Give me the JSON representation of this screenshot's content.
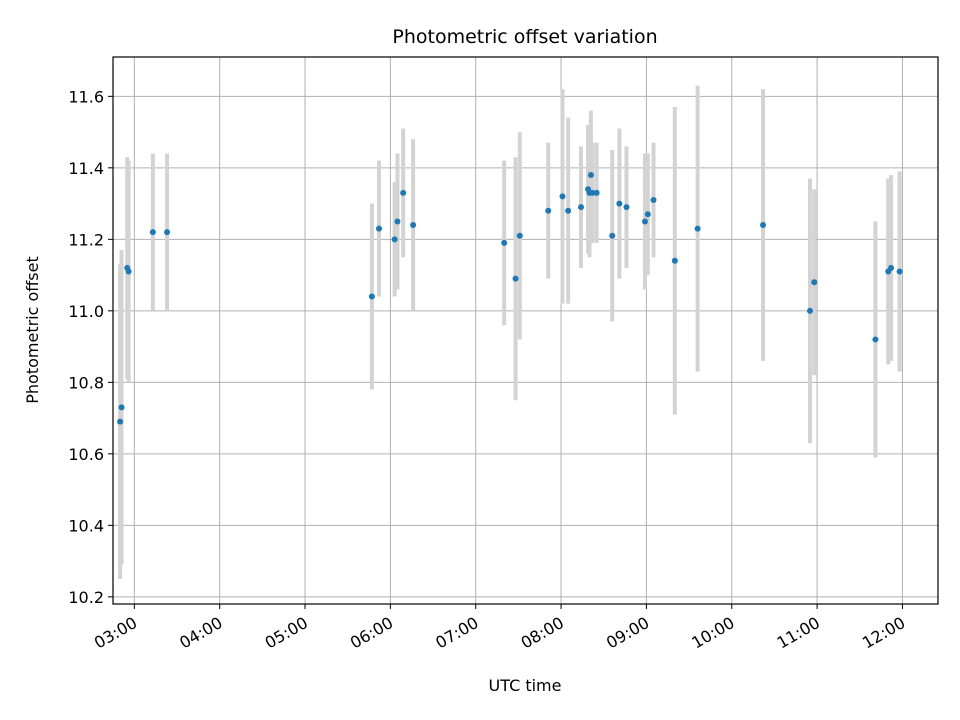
{
  "chart_data": {
    "type": "scatter",
    "title": "Photometric offset variation",
    "xlabel": "UTC time",
    "ylabel": "Photometric offset",
    "x_unit": "UTC hour",
    "xlim": [
      "02:45",
      "12:25"
    ],
    "ylim": [
      10.18,
      11.71
    ],
    "x_ticks": [
      "03:00",
      "04:00",
      "05:00",
      "06:00",
      "07:00",
      "08:00",
      "09:00",
      "10:00",
      "11:00",
      "12:00"
    ],
    "y_ticks": [
      "10.2",
      "10.4",
      "10.6",
      "10.8",
      "11.0",
      "11.2",
      "11.4",
      "11.6"
    ],
    "grid": true,
    "colors": {
      "point": "#1f77b4",
      "errorbar": "#d3d3d3",
      "grid": "#b0b0b0"
    },
    "series": [
      {
        "points": [
          {
            "x": "02:50",
            "y": 10.69,
            "err": 0.44
          },
          {
            "x": "02:51",
            "y": 10.73,
            "err": 0.44
          },
          {
            "x": "02:55",
            "y": 11.12,
            "err": 0.31
          },
          {
            "x": "02:56",
            "y": 11.11,
            "err": 0.31
          },
          {
            "x": "03:13",
            "y": 11.22,
            "err": 0.22
          },
          {
            "x": "03:23",
            "y": 11.22,
            "err": 0.22
          },
          {
            "x": "05:47",
            "y": 11.04,
            "err": 0.26
          },
          {
            "x": "05:52",
            "y": 11.23,
            "err": 0.19
          },
          {
            "x": "06:03",
            "y": 11.2,
            "err": 0.16
          },
          {
            "x": "06:05",
            "y": 11.25,
            "err": 0.19
          },
          {
            "x": "06:09",
            "y": 11.33,
            "err": 0.18
          },
          {
            "x": "06:16",
            "y": 11.24,
            "err": 0.24
          },
          {
            "x": "07:20",
            "y": 11.19,
            "err": 0.23
          },
          {
            "x": "07:28",
            "y": 11.09,
            "err": 0.34
          },
          {
            "x": "07:31",
            "y": 11.21,
            "err": 0.29
          },
          {
            "x": "07:51",
            "y": 11.28,
            "err": 0.19
          },
          {
            "x": "08:01",
            "y": 11.32,
            "err": 0.3
          },
          {
            "x": "08:05",
            "y": 11.28,
            "err": 0.26
          },
          {
            "x": "08:14",
            "y": 11.29,
            "err": 0.17
          },
          {
            "x": "08:19",
            "y": 11.34,
            "err": 0.18
          },
          {
            "x": "08:20",
            "y": 11.33,
            "err": 0.18
          },
          {
            "x": "08:21",
            "y": 11.38,
            "err": 0.18
          },
          {
            "x": "08:22",
            "y": 11.33,
            "err": 0.14
          },
          {
            "x": "08:25",
            "y": 11.33,
            "err": 0.14
          },
          {
            "x": "08:36",
            "y": 11.21,
            "err": 0.24
          },
          {
            "x": "08:41",
            "y": 11.3,
            "err": 0.21
          },
          {
            "x": "08:46",
            "y": 11.29,
            "err": 0.17
          },
          {
            "x": "08:59",
            "y": 11.25,
            "err": 0.19
          },
          {
            "x": "09:01",
            "y": 11.27,
            "err": 0.17
          },
          {
            "x": "09:05",
            "y": 11.31,
            "err": 0.16
          },
          {
            "x": "09:20",
            "y": 11.14,
            "err": 0.43
          },
          {
            "x": "09:36",
            "y": 11.23,
            "err": 0.4
          },
          {
            "x": "10:22",
            "y": 11.24,
            "err": 0.38
          },
          {
            "x": "10:55",
            "y": 11.0,
            "err": 0.37
          },
          {
            "x": "10:58",
            "y": 11.08,
            "err": 0.26
          },
          {
            "x": "11:41",
            "y": 10.92,
            "err": 0.33
          },
          {
            "x": "11:50",
            "y": 11.11,
            "err": 0.26
          },
          {
            "x": "11:52",
            "y": 11.12,
            "err": 0.26
          },
          {
            "x": "11:58",
            "y": 11.11,
            "err": 0.28
          }
        ]
      }
    ]
  }
}
